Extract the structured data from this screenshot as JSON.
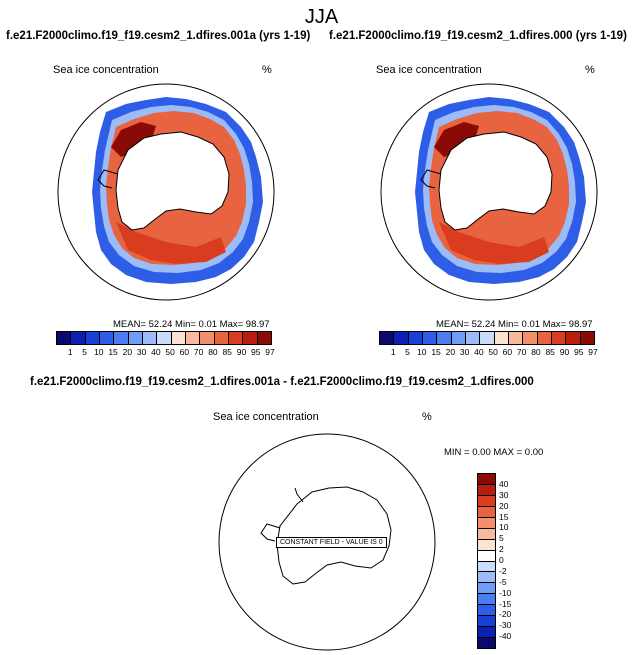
{
  "title": "JJA",
  "panels": [
    {
      "title": "f.e21.F2000climo.f19_f19.cesm2_1.dfires.001a (yrs 1-19)",
      "variable": "Sea ice concentration",
      "units": "%",
      "stats": "MEAN=  52.24  Min=   0.01  Max=  98.97",
      "colorbar_labels": [
        "1",
        "5",
        "10",
        "15",
        "20",
        "30",
        "40",
        "50",
        "60",
        "70",
        "80",
        "85",
        "90",
        "95",
        "97"
      ]
    },
    {
      "title": "f.e21.F2000climo.f19_f19.cesm2_1.dfires.000 (yrs 1-19)",
      "variable": "Sea ice concentration",
      "units": "%",
      "stats": "MEAN=  52.24  Min=   0.01  Max=  98.97",
      "colorbar_labels": [
        "1",
        "5",
        "10",
        "15",
        "20",
        "30",
        "40",
        "50",
        "60",
        "70",
        "80",
        "85",
        "90",
        "95",
        "97"
      ]
    }
  ],
  "diff": {
    "title": "f.e21.F2000climo.f19_f19.cesm2_1.dfires.001a - f.e21.F2000climo.f19_f19.cesm2_1.dfires.000",
    "variable": "Sea ice concentration",
    "units": "%",
    "stats": "MIN =   0.00 MAX =   0.00",
    "note": "CONSTANT FIELD - VALUE IS 0",
    "colorbar_labels": [
      "40",
      "30",
      "20",
      "15",
      "10",
      "5",
      "2",
      "0",
      "-2",
      "-5",
      "-10",
      "-15",
      "-20",
      "-30",
      "-40"
    ]
  },
  "colors": {
    "seq_scale": [
      "#0a0a6e",
      "#0d1fb3",
      "#1a3fd6",
      "#2e5ee8",
      "#4a7ef0",
      "#6f9cf4",
      "#9cbcf7",
      "#cadcfa",
      "#fde2d2",
      "#f8b99c",
      "#f28f6c",
      "#e8633f",
      "#d93c1f",
      "#b81d0e",
      "#8a0b05"
    ],
    "div_scale": [
      "#8a0b05",
      "#b81d0e",
      "#d93c1f",
      "#e8633f",
      "#f28f6c",
      "#f8b99c",
      "#fde2d2",
      "#ffffff",
      "#cadcfa",
      "#9cbcf7",
      "#6f9cf4",
      "#4a7ef0",
      "#2e5ee8",
      "#1a3fd6",
      "#0d1fb3",
      "#0a0a6e"
    ]
  }
}
